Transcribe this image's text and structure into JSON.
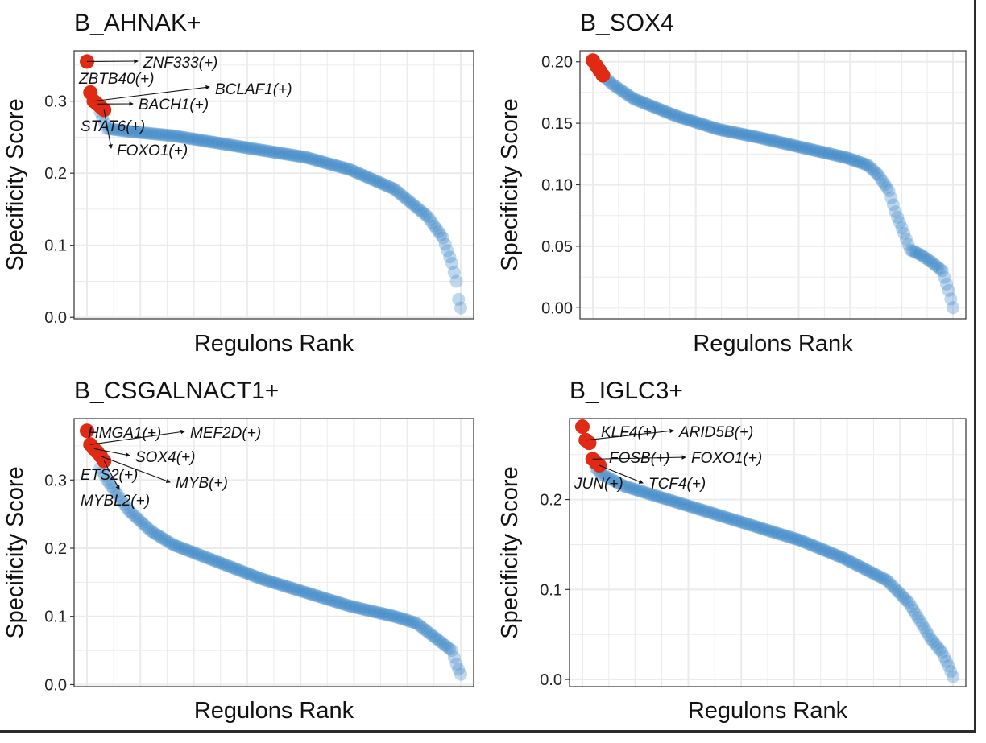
{
  "chart_data": [
    {
      "type": "scatter",
      "title": "B_AHNAK+",
      "xlabel": "Regulons Rank",
      "ylabel": "Specificity Score",
      "ylim": [
        -0.002,
        0.37
      ],
      "yticks": [
        0.0,
        0.1,
        0.2,
        0.3
      ],
      "ytick_labels": [
        "0.0",
        "0.1",
        "0.2",
        "0.3"
      ],
      "n_points": 170,
      "curve_points": [
        [
          1,
          0.355
        ],
        [
          5,
          0.3
        ],
        [
          10,
          0.262
        ],
        [
          20,
          0.258
        ],
        [
          40,
          0.252
        ],
        [
          60,
          0.242
        ],
        [
          80,
          0.232
        ],
        [
          100,
          0.222
        ],
        [
          120,
          0.205
        ],
        [
          140,
          0.178
        ],
        [
          155,
          0.14
        ],
        [
          162,
          0.11
        ],
        [
          166,
          0.075
        ],
        [
          168,
          0.05
        ],
        [
          169,
          0.025
        ],
        [
          170,
          0.013
        ]
      ],
      "highlighted": [
        {
          "label": "ZNF333(+)",
          "rank": 1,
          "score": 0.355
        },
        {
          "label": "ZBTB40(+)",
          "rank": 2,
          "score": 0.312
        },
        {
          "label": "BCLAF1(+)",
          "rank": 3,
          "score": 0.3
        },
        {
          "label": "BACH1(+)",
          "rank": 4,
          "score": 0.296
        },
        {
          "label": "STAT6(+)",
          "rank": 5,
          "score": 0.292
        },
        {
          "label": "FOXO1(+)",
          "rank": 6,
          "score": 0.288
        }
      ],
      "grid": true
    },
    {
      "type": "scatter",
      "title": "B_SOX4",
      "xlabel": "Regulons Rank",
      "ylabel": "Specificity Score",
      "ylim": [
        -0.009,
        0.209
      ],
      "yticks": [
        0.0,
        0.05,
        0.1,
        0.15,
        0.2
      ],
      "ytick_labels": [
        "0.00",
        "0.05",
        "0.10",
        "0.15",
        "0.20"
      ],
      "n_points": 170,
      "curve_points": [
        [
          1,
          0.201
        ],
        [
          5,
          0.19
        ],
        [
          10,
          0.182
        ],
        [
          20,
          0.17
        ],
        [
          40,
          0.156
        ],
        [
          60,
          0.145
        ],
        [
          80,
          0.138
        ],
        [
          100,
          0.13
        ],
        [
          120,
          0.122
        ],
        [
          130,
          0.116
        ],
        [
          135,
          0.108
        ],
        [
          140,
          0.095
        ],
        [
          143,
          0.078
        ],
        [
          146,
          0.065
        ],
        [
          150,
          0.047
        ],
        [
          155,
          0.043
        ],
        [
          160,
          0.037
        ],
        [
          165,
          0.03
        ],
        [
          168,
          0.014
        ],
        [
          170,
          0.0
        ]
      ],
      "highlighted": [
        {
          "label": "",
          "rank": 1,
          "score": 0.201
        },
        {
          "label": "",
          "rank": 2,
          "score": 0.197
        },
        {
          "label": "",
          "rank": 3,
          "score": 0.193
        },
        {
          "label": "",
          "rank": 4,
          "score": 0.189
        }
      ],
      "grid": true
    },
    {
      "type": "scatter",
      "title": "B_CSGALNACT1+",
      "xlabel": "Regulons Rank",
      "ylabel": "Specificity Score",
      "ylim": [
        -0.003,
        0.39
      ],
      "yticks": [
        0.0,
        0.1,
        0.2,
        0.3
      ],
      "ytick_labels": [
        "0.0",
        "0.1",
        "0.2",
        "0.3"
      ],
      "n_points": 170,
      "curve_points": [
        [
          1,
          0.372
        ],
        [
          5,
          0.33
        ],
        [
          10,
          0.3
        ],
        [
          20,
          0.255
        ],
        [
          30,
          0.225
        ],
        [
          40,
          0.205
        ],
        [
          60,
          0.18
        ],
        [
          80,
          0.155
        ],
        [
          100,
          0.135
        ],
        [
          120,
          0.115
        ],
        [
          140,
          0.1
        ],
        [
          150,
          0.09
        ],
        [
          160,
          0.065
        ],
        [
          166,
          0.05
        ],
        [
          168,
          0.03
        ],
        [
          170,
          0.015
        ]
      ],
      "highlighted": [
        {
          "label": "HMGA1(+)",
          "rank": 1,
          "score": 0.372
        },
        {
          "label": "MEF2D(+)",
          "rank": 2,
          "score": 0.352
        },
        {
          "label": "SOX4(+)",
          "rank": 3,
          "score": 0.346
        },
        {
          "label": "ETS2(+)",
          "rank": 4,
          "score": 0.341
        },
        {
          "label": "MYB(+)",
          "rank": 5,
          "score": 0.335
        },
        {
          "label": "MYBL2(+)",
          "rank": 6,
          "score": 0.328
        }
      ],
      "grid": true
    },
    {
      "type": "scatter",
      "title": "B_IGLC3+",
      "xlabel": "Regulons Rank",
      "ylabel": "Specificity Score",
      "ylim": [
        -0.008,
        0.29
      ],
      "yticks": [
        0.0,
        0.1,
        0.2
      ],
      "ytick_labels": [
        "0.0",
        "0.1",
        "0.2"
      ],
      "n_points": 170,
      "curve_points": [
        [
          1,
          0.28
        ],
        [
          5,
          0.24
        ],
        [
          10,
          0.228
        ],
        [
          20,
          0.215
        ],
        [
          40,
          0.2
        ],
        [
          60,
          0.185
        ],
        [
          80,
          0.17
        ],
        [
          100,
          0.155
        ],
        [
          120,
          0.135
        ],
        [
          140,
          0.11
        ],
        [
          150,
          0.085
        ],
        [
          155,
          0.065
        ],
        [
          160,
          0.045
        ],
        [
          165,
          0.03
        ],
        [
          168,
          0.015
        ],
        [
          170,
          0.003
        ]
      ],
      "highlighted": [
        {
          "label": "KLF4(+)",
          "rank": 1,
          "score": 0.281
        },
        {
          "label": "ARID5B(+)",
          "rank": 2,
          "score": 0.266
        },
        {
          "label": "FOSB(+)",
          "rank": 3,
          "score": 0.263
        },
        {
          "label": "FOXO1(+)",
          "rank": 4,
          "score": 0.245
        },
        {
          "label": "JUN(+)",
          "rank": 5,
          "score": 0.241
        },
        {
          "label": "TCF4(+)",
          "rank": 6,
          "score": 0.238
        }
      ],
      "grid": true
    }
  ],
  "colors": {
    "points": "#3a86c6",
    "highlight": "#e02a14",
    "grid": "#ebebeb",
    "axis": "#333333"
  }
}
